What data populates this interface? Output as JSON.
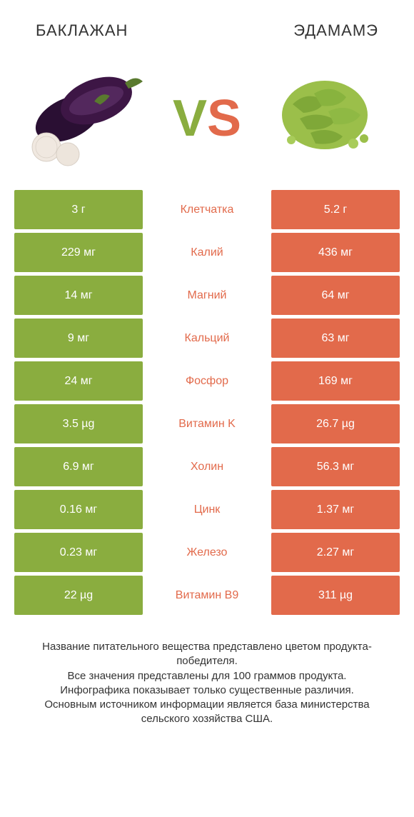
{
  "header": {
    "left_title": "БАКЛАЖАН",
    "right_title": "ЭДАМАМЭ"
  },
  "vs": {
    "v": "V",
    "s": "S"
  },
  "colors": {
    "left": "#8aad3f",
    "right": "#e26a4b",
    "mid_default": "#333333"
  },
  "table": {
    "rows": [
      {
        "label": "Клетчатка",
        "left": "3 г",
        "right": "5.2 г",
        "winner": "right"
      },
      {
        "label": "Калий",
        "left": "229 мг",
        "right": "436 мг",
        "winner": "right"
      },
      {
        "label": "Магний",
        "left": "14 мг",
        "right": "64 мг",
        "winner": "right"
      },
      {
        "label": "Кальций",
        "left": "9 мг",
        "right": "63 мг",
        "winner": "right"
      },
      {
        "label": "Фосфор",
        "left": "24 мг",
        "right": "169 мг",
        "winner": "right"
      },
      {
        "label": "Витамин K",
        "left": "3.5 µg",
        "right": "26.7 µg",
        "winner": "right"
      },
      {
        "label": "Холин",
        "left": "6.9 мг",
        "right": "56.3 мг",
        "winner": "right"
      },
      {
        "label": "Цинк",
        "left": "0.16 мг",
        "right": "1.37 мг",
        "winner": "right"
      },
      {
        "label": "Железо",
        "left": "0.23 мг",
        "right": "2.27 мг",
        "winner": "right"
      },
      {
        "label": "Витамин B9",
        "left": "22 µg",
        "right": "311 µg",
        "winner": "right"
      }
    ]
  },
  "footer": {
    "line1": "Название питательного вещества представлено цветом продукта-победителя.",
    "line2": "Все значения представлены для 100 граммов продукта.",
    "line3": "Инфографика показывает только существенные различия.",
    "line4": "Основным источником информации является база министерства сельского хозяйства США."
  }
}
